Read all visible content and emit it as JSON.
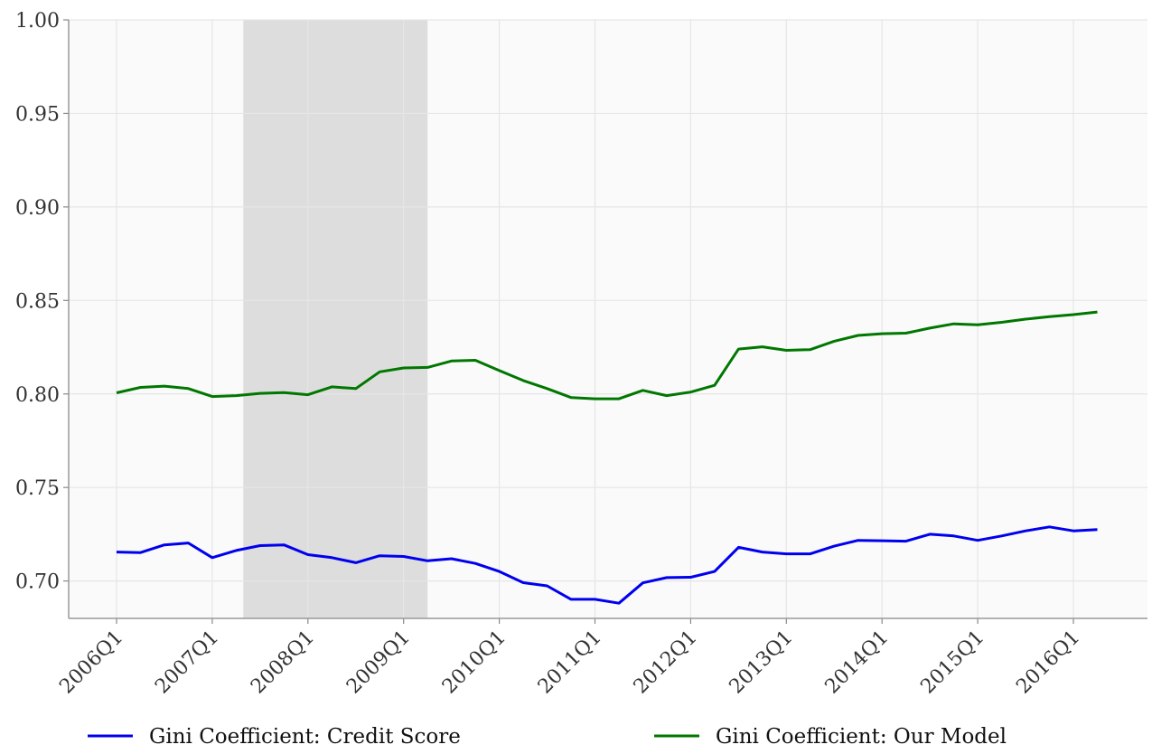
{
  "chart_data": {
    "type": "line",
    "title": "",
    "xlabel": "",
    "ylabel": "",
    "ylim": [
      0.68,
      1.0
    ],
    "y_ticks": [
      "0.70",
      "0.75",
      "0.80",
      "0.85",
      "0.90",
      "0.95",
      "1.00"
    ],
    "x_ticks": [
      "2006Q1",
      "2007Q1",
      "2008Q1",
      "2009Q1",
      "2010Q1",
      "2011Q1",
      "2012Q1",
      "2013Q1",
      "2014Q1",
      "2015Q1",
      "2016Q1"
    ],
    "x": [
      "2006Q1",
      "2006Q2",
      "2006Q3",
      "2006Q4",
      "2007Q1",
      "2007Q2",
      "2007Q3",
      "2007Q4",
      "2008Q1",
      "2008Q2",
      "2008Q3",
      "2008Q4",
      "2009Q1",
      "2009Q2",
      "2009Q3",
      "2009Q4",
      "2010Q1",
      "2010Q2",
      "2010Q3",
      "2010Q4",
      "2011Q1",
      "2011Q2",
      "2011Q3",
      "2011Q4",
      "2012Q1",
      "2012Q2",
      "2012Q3",
      "2012Q4",
      "2013Q1",
      "2013Q2",
      "2013Q3",
      "2013Q4",
      "2014Q1",
      "2014Q2",
      "2014Q3",
      "2014Q4",
      "2015Q1",
      "2015Q2",
      "2015Q3",
      "2015Q4",
      "2016Q1",
      "2016Q2"
    ],
    "shaded_region": [
      "2007Q3",
      "2009Q1"
    ],
    "grid": true,
    "legend_position": "bottom",
    "colors": {
      "credit": "#0000ee",
      "model": "#007700",
      "shade": "#dddddd",
      "plot_bg": "#fafafa",
      "grid": "#e6e6e6"
    },
    "series": [
      {
        "name": "Gini Coefficient: Credit Score",
        "color": "#0000ee",
        "values": [
          0.7155,
          0.7152,
          0.7193,
          0.7203,
          0.7125,
          0.7163,
          0.7189,
          0.7193,
          0.7141,
          0.7125,
          0.7098,
          0.7135,
          0.7131,
          0.7108,
          0.7119,
          0.7094,
          0.7051,
          0.6991,
          0.6974,
          0.6902,
          0.6902,
          0.6881,
          0.699,
          0.7018,
          0.702,
          0.7051,
          0.718,
          0.7155,
          0.7145,
          0.7145,
          0.7186,
          0.7217,
          0.7215,
          0.7213,
          0.725,
          0.7241,
          0.7217,
          0.7241,
          0.7268,
          0.7289,
          0.7268,
          0.7275
        ]
      },
      {
        "name": "Gini Coefficient: Our Model",
        "color": "#007700",
        "values": [
          0.8006,
          0.8035,
          0.8042,
          0.8029,
          0.7986,
          0.7991,
          0.8003,
          0.8007,
          0.7996,
          0.8038,
          0.8029,
          0.8118,
          0.8139,
          0.8142,
          0.8176,
          0.818,
          0.8125,
          0.8072,
          0.8029,
          0.7981,
          0.7974,
          0.7974,
          0.8019,
          0.7991,
          0.801,
          0.8046,
          0.824,
          0.8252,
          0.8233,
          0.8237,
          0.8282,
          0.8313,
          0.8322,
          0.8325,
          0.8352,
          0.8375,
          0.837,
          0.8383,
          0.84,
          0.8413,
          0.8424,
          0.8438
        ]
      }
    ]
  }
}
